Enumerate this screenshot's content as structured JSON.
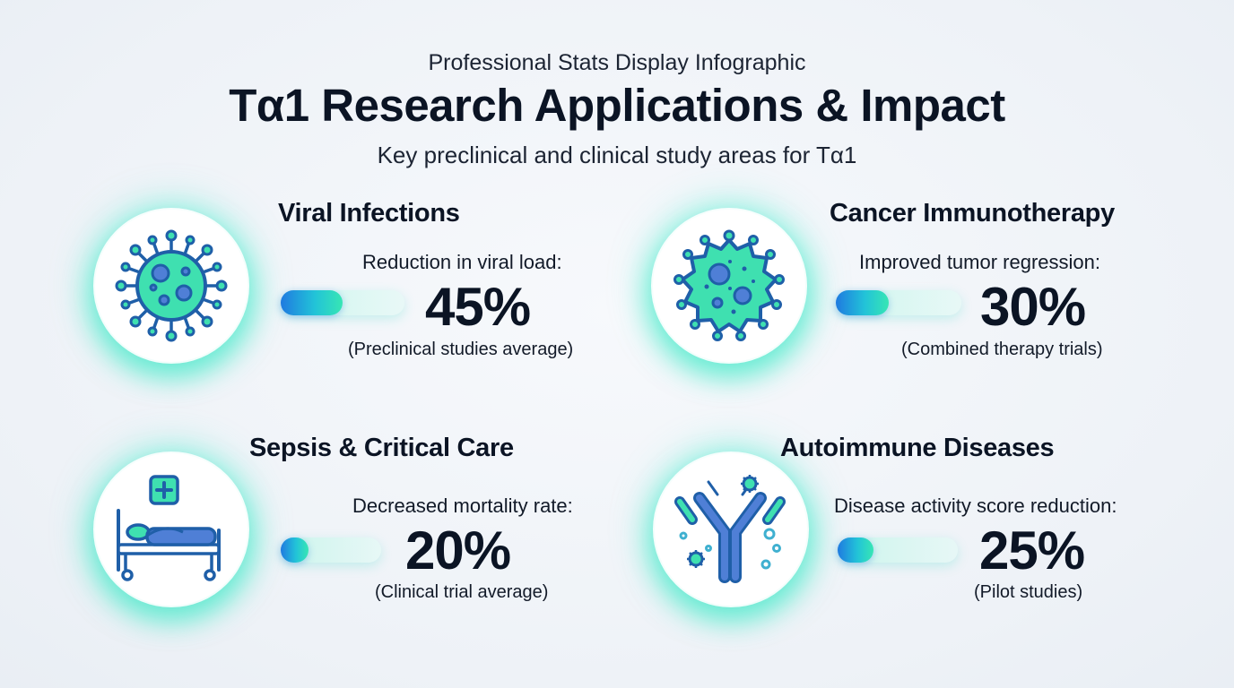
{
  "header": {
    "kicker": "Professional Stats Display Infographic",
    "title": "Tα1 Research Applications & Impact",
    "subtitle": "Key preclinical and clinical study areas for Tα1"
  },
  "colors": {
    "accent_teal": "#37e6b4",
    "accent_blue": "#1f7ae0",
    "icon_stroke": "#1f5fa8",
    "icon_fill_teal": "#3fe0b0"
  },
  "cards": [
    {
      "title": "Viral Infections",
      "metric_label": "Reduction in viral load:",
      "value": "45%",
      "note": "(Preclinical studies average)",
      "bar_fraction": 0.5,
      "icon": "virus-icon"
    },
    {
      "title": "Cancer Immunotherapy",
      "metric_label": "Improved tumor regression:",
      "value": "30%",
      "note": "(Combined therapy trials)",
      "bar_fraction": 0.42,
      "icon": "cancer-cell-icon"
    },
    {
      "title": "Sepsis & Critical Care",
      "metric_label": "Decreased mortality rate:",
      "value": "20%",
      "note": "(Clinical trial average)",
      "bar_fraction": 0.28,
      "icon": "hospital-bed-icon"
    },
    {
      "title": "Autoimmune Diseases",
      "metric_label": "Disease activity score reduction:",
      "value": "25%",
      "note": "(Pilot studies)",
      "bar_fraction": 0.3,
      "icon": "antibody-icon"
    }
  ]
}
